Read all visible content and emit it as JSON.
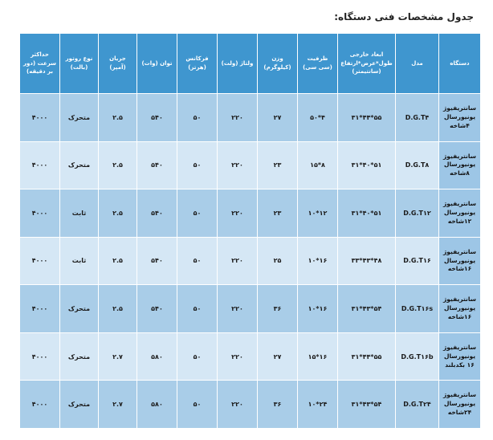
{
  "title": "جدول مشخصات فنی دستگاه:",
  "headers": [
    "دستگاه",
    "مدل",
    "ابعاد خارجی طول*عرض*ارتفاع (سانتیمتر)",
    "ظرفیت (سی سی)",
    "وزن (کیلوگرم)",
    "ولتاژ (ولت)",
    "فرکانس (هرتز)",
    "توان (وات)",
    "جریان (آمپر)",
    "نوع روتور (بالت)",
    "حداکثر سرعت (دور بر دقیقه)"
  ],
  "rows": [
    [
      "سانتریفیوژ یونیورسال ۴شاخه",
      "D.G.T۴",
      "۵۵*۴۴*۳۱",
      "۴*۵۰",
      "۲۷",
      "۲۲۰",
      "۵۰",
      "۵۴۰",
      "۲.۵",
      "متحرک",
      "۴۰۰۰"
    ],
    [
      "سانتریفیوژ یونیورسال ۸شاخه",
      "D.G.T۸",
      "۵۱*۴۰*۳۱",
      "۸*۱۵",
      "۲۳",
      "۲۲۰",
      "۵۰",
      "۵۴۰",
      "۲.۵",
      "متحرک",
      "۴۰۰۰"
    ],
    [
      "سانتریفیوژ یونیورسال ۱۲شاخه",
      "D.G.T۱۲",
      "۵۱*۴۰*۳۱",
      "۱۲*۱۰",
      "۲۳",
      "۲۲۰",
      "۵۰",
      "۵۴۰",
      "۲.۵",
      "ثابت",
      "۴۰۰۰"
    ],
    [
      "سانتریفیوژ یونیورسال ۱۶شاخه",
      "D.G.T۱۶",
      "۴۸*۴۳*۳۳",
      "۱۶*۱۰",
      "۲۵",
      "۲۲۰",
      "۵۰",
      "۵۴۰",
      "۲.۵",
      "ثابت",
      "۴۰۰۰"
    ],
    [
      "سانتریفیوژ یونیورسال ۱۶شاخه",
      "D.G.T۱۶s",
      "۵۴*۴۳*۳۱",
      "۱۶*۱۰",
      "۳۶",
      "۲۲۰",
      "۵۰",
      "۵۴۰",
      "۲.۵",
      "متحرک",
      "۴۰۰۰"
    ],
    [
      "سانتریفیوژ یونیورسال ۱۶ بکدبلند",
      "D.G.T۱۶b",
      "۵۵*۴۴*۳۱",
      "۱۶*۱۵",
      "۲۷",
      "۲۲۰",
      "۵۰",
      "۵۸۰",
      "۲.۷",
      "متحرک",
      "۴۰۰۰"
    ],
    [
      "سانتریفیوژ یونیورسال ۲۴شاخه",
      "D.G.T۲۴",
      "۵۴*۴۳*۳۱",
      "۲۴*۱۰",
      "۳۶",
      "۲۲۰",
      "۵۰",
      "۵۸۰",
      "۲.۷",
      "متحرک",
      "۴۰۰۰"
    ]
  ]
}
